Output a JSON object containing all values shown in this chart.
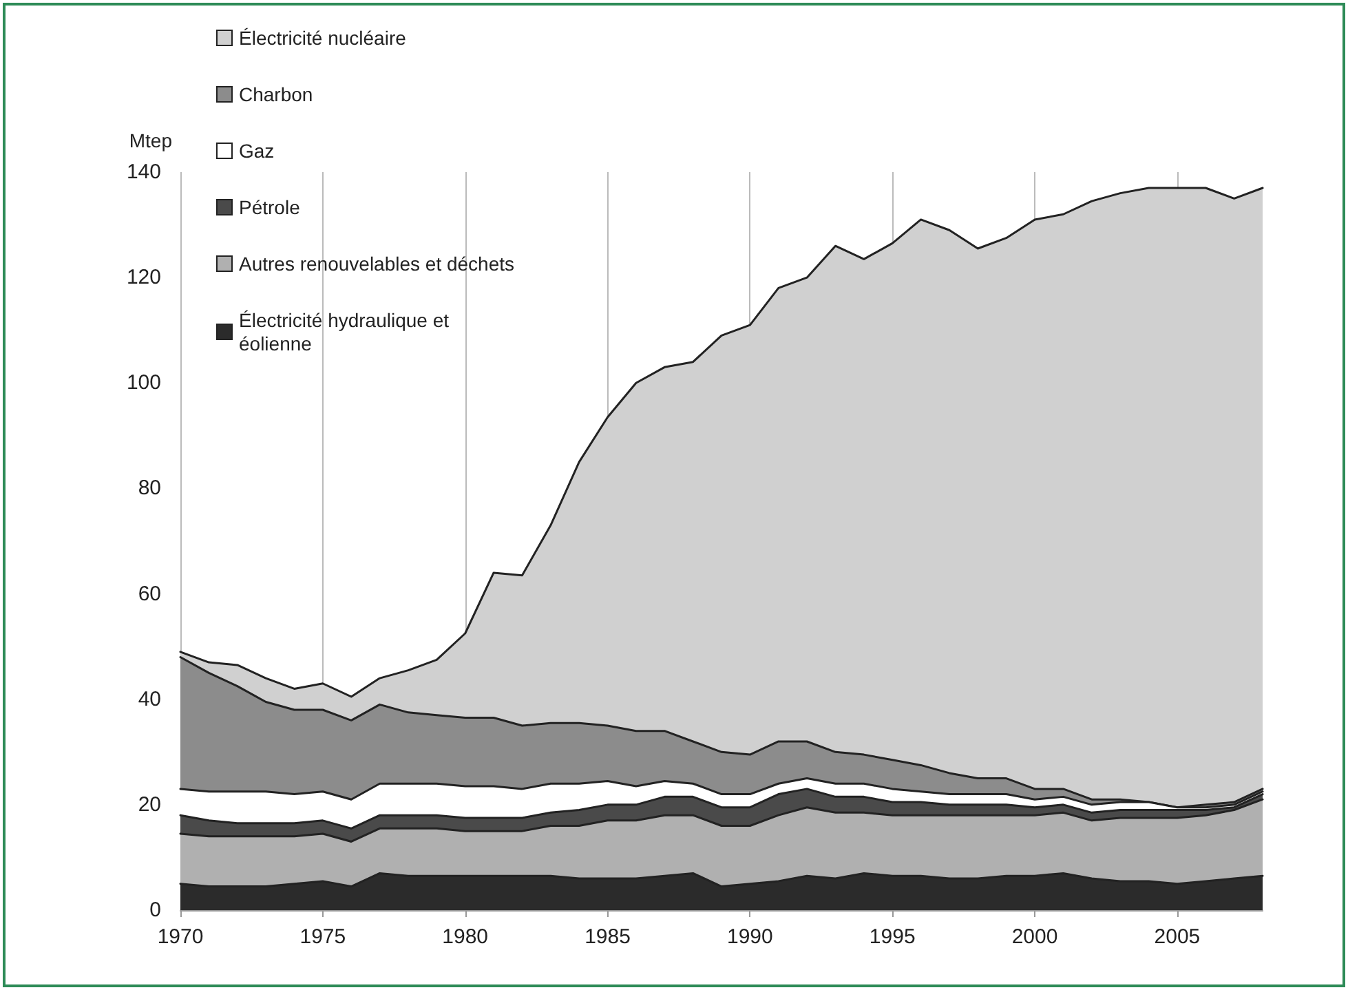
{
  "chart_data": {
    "type": "area",
    "stacked": true,
    "ylabel": "Mtep",
    "legend": "top left",
    "grid": "x",
    "marker": "none",
    "line_style": "solid",
    "x": [
      1970,
      1971,
      1972,
      1973,
      1974,
      1975,
      1976,
      1977,
      1978,
      1979,
      1980,
      1981,
      1982,
      1983,
      1984,
      1985,
      1986,
      1987,
      1988,
      1989,
      1990,
      1991,
      1992,
      1993,
      1994,
      1995,
      1996,
      1997,
      1998,
      1999,
      2000,
      2001,
      2002,
      2003,
      2004,
      2005,
      2006,
      2007,
      2008
    ],
    "xlim": [
      1970,
      2008
    ],
    "xticks": [
      1970,
      1975,
      1980,
      1985,
      1990,
      1995,
      2000,
      2005
    ],
    "ylim": [
      0,
      140
    ],
    "yticks": [
      0,
      20,
      40,
      60,
      80,
      100,
      120,
      140
    ],
    "series": [
      {
        "name": "Électricité hydraulique et éolienne",
        "color": "#2b2b2b",
        "values": [
          5,
          4.5,
          4.5,
          4.5,
          5,
          5.5,
          4.5,
          7,
          6.5,
          6.5,
          6.5,
          6.5,
          6.5,
          6.5,
          6,
          6,
          6,
          6.5,
          7,
          4.5,
          5,
          5.5,
          6.5,
          6,
          7,
          6.5,
          6.5,
          6,
          6,
          6.5,
          6.5,
          7,
          6,
          5.5,
          5.5,
          5,
          5.5,
          6,
          6.5
        ]
      },
      {
        "name": "Autres renouvelables et déchets",
        "color": "#b0b0b0",
        "values": [
          9.5,
          9.5,
          9.5,
          9.5,
          9,
          9,
          8.5,
          8.5,
          9,
          9,
          8.5,
          8.5,
          8.5,
          9.5,
          10,
          11,
          11,
          11.5,
          11,
          11.5,
          11,
          12.5,
          13,
          12.5,
          11.5,
          11.5,
          11.5,
          12,
          12,
          11.5,
          11.5,
          11.5,
          11,
          12,
          12,
          12.5,
          12.5,
          13,
          14.5
        ]
      },
      {
        "name": "Pétrole",
        "color": "#4a4a4a",
        "values": [
          3.5,
          3,
          2.5,
          2.5,
          2.5,
          2.5,
          2.5,
          2.5,
          2.5,
          2.5,
          2.5,
          2.5,
          2.5,
          2.5,
          3,
          3,
          3,
          3.5,
          3.5,
          3.5,
          3.5,
          4,
          3.5,
          3,
          3,
          2.5,
          2.5,
          2,
          2,
          2,
          1.5,
          1.5,
          1.5,
          1.5,
          1.5,
          1.5,
          1,
          0.5,
          1
        ]
      },
      {
        "name": "Gaz",
        "color": "#ffffff",
        "values": [
          5,
          5.5,
          6,
          6,
          5.5,
          5.5,
          5.5,
          6,
          6,
          6,
          6,
          6,
          5.5,
          5.5,
          5,
          4.5,
          3.5,
          3,
          2.5,
          2.5,
          2.5,
          2,
          2,
          2.5,
          2.5,
          2.5,
          2,
          2,
          2,
          2,
          1.5,
          1.5,
          1.5,
          1.5,
          1.5,
          0.5,
          0.5,
          0.5,
          0.5
        ]
      },
      {
        "name": "Charbon",
        "color": "#8c8c8c",
        "values": [
          25,
          22.5,
          20,
          17,
          16,
          15.5,
          15,
          15,
          13.5,
          13,
          13,
          13,
          12,
          11.5,
          11.5,
          10.5,
          10.5,
          9.5,
          8,
          8,
          7.5,
          8,
          7,
          6,
          5.5,
          5.5,
          5,
          4,
          3,
          3,
          2,
          1.5,
          1,
          0.5,
          0,
          0,
          0.5,
          0.5,
          0.5
        ]
      },
      {
        "name": "Électricité nucléaire",
        "color": "#d0d0d0",
        "values": [
          1,
          2,
          4,
          4.5,
          4,
          5,
          4.5,
          5,
          8,
          10.5,
          16,
          27.5,
          28.5,
          37.5,
          49.5,
          58.5,
          66,
          69,
          72,
          79,
          81.5,
          86,
          88,
          96,
          94,
          98,
          103.5,
          103,
          100.5,
          102.5,
          108,
          109,
          113.5,
          115,
          116.5,
          117.5,
          117,
          114.5,
          114
        ]
      }
    ]
  }
}
